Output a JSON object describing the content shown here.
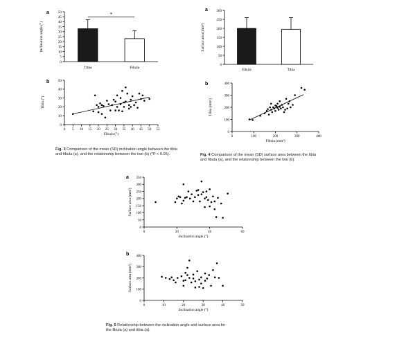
{
  "figures": {
    "fig3": {
      "label": "Fig. 3",
      "text": "Comparison of the mean (SD) inclination angle between the tibia and fibula (a), and the relationship between the two (b) (*P < 0.05)."
    },
    "fig4": {
      "label": "Fig. 4",
      "text": "Comparison of the mean (SD) surface area between the tibia and fibula (a), and the relationship between the two (b)."
    },
    "fig5": {
      "label": "Fig. 5",
      "text": "Relationship between the inclination angle and surface area for the fibula (a) and tibia (a)."
    }
  },
  "chart_data": [
    {
      "id": "fig3a",
      "panel": "a",
      "type": "bar",
      "categories": [
        "Tibia",
        "Fibula"
      ],
      "values": [
        33,
        23
      ],
      "errors": [
        9,
        8
      ],
      "bar_colors": [
        "#1a1a1a",
        "#ffffff"
      ],
      "significance": "*",
      "ylabel": "Inclination angle (°)",
      "ylim": [
        0,
        50
      ],
      "yticks": [
        0,
        5,
        10,
        15,
        20,
        25,
        30,
        35,
        40,
        45,
        50
      ]
    },
    {
      "id": "fig3b",
      "panel": "b",
      "type": "scatter",
      "xlabel": "Fibula (°)",
      "ylabel": "Tibia (°)",
      "xlim": [
        0,
        55
      ],
      "ylim": [
        0,
        50
      ],
      "xticks": [
        0,
        5,
        10,
        15,
        20,
        25,
        30,
        35,
        40,
        45,
        50,
        55
      ],
      "yticks": [
        0,
        10,
        20,
        30,
        40,
        50
      ],
      "trend": [
        [
          5,
          12
        ],
        [
          50,
          31
        ]
      ],
      "points": [
        [
          5,
          12
        ],
        [
          17,
          15
        ],
        [
          18,
          33
        ],
        [
          19,
          22
        ],
        [
          20,
          20
        ],
        [
          20,
          14
        ],
        [
          21,
          24
        ],
        [
          22,
          12
        ],
        [
          22,
          22
        ],
        [
          23,
          21
        ],
        [
          24,
          8
        ],
        [
          25,
          27
        ],
        [
          26,
          23
        ],
        [
          27,
          16
        ],
        [
          28,
          22
        ],
        [
          29,
          28
        ],
        [
          30,
          16
        ],
        [
          30,
          26
        ],
        [
          31,
          20
        ],
        [
          31,
          33
        ],
        [
          32,
          16
        ],
        [
          33,
          23
        ],
        [
          33,
          30
        ],
        [
          34,
          38
        ],
        [
          34,
          15
        ],
        [
          35,
          20
        ],
        [
          35,
          25
        ],
        [
          36,
          42
        ],
        [
          36,
          26
        ],
        [
          37,
          35
        ],
        [
          38,
          22
        ],
        [
          38,
          18
        ],
        [
          39,
          28
        ],
        [
          39,
          20
        ],
        [
          40,
          32
        ],
        [
          41,
          22
        ],
        [
          42,
          25
        ],
        [
          43,
          19
        ],
        [
          44,
          35
        ],
        [
          45,
          29
        ],
        [
          46,
          33
        ],
        [
          47,
          27
        ],
        [
          50,
          29
        ]
      ]
    },
    {
      "id": "fig4a",
      "panel": "a",
      "type": "bar",
      "categories": [
        "Fibula",
        "Tibia"
      ],
      "values": [
        200,
        195
      ],
      "errors": [
        60,
        65
      ],
      "bar_colors": [
        "#1a1a1a",
        "#ffffff"
      ],
      "ylabel": "Surface area (mm²)",
      "ylim": [
        0,
        300
      ],
      "yticks": [
        0,
        50,
        100,
        150,
        200,
        250,
        300
      ]
    },
    {
      "id": "fig4b",
      "panel": "b",
      "type": "scatter",
      "xlabel": "Fibula (mm²)",
      "ylabel": "Tibia (mm²)",
      "xlim": [
        0,
        400
      ],
      "ylim": [
        0,
        400
      ],
      "xticks": [
        0,
        100,
        200,
        300,
        400
      ],
      "yticks": [
        0,
        100,
        200,
        300,
        400
      ],
      "trend": [
        [
          80,
          95
        ],
        [
          330,
          305
        ]
      ],
      "points": [
        [
          80,
          100
        ],
        [
          95,
          95
        ],
        [
          130,
          130
        ],
        [
          150,
          150
        ],
        [
          160,
          170
        ],
        [
          165,
          185
        ],
        [
          170,
          140
        ],
        [
          175,
          200
        ],
        [
          180,
          180
        ],
        [
          180,
          230
        ],
        [
          185,
          160
        ],
        [
          190,
          200
        ],
        [
          195,
          190
        ],
        [
          200,
          215
        ],
        [
          200,
          170
        ],
        [
          205,
          210
        ],
        [
          210,
          195
        ],
        [
          210,
          230
        ],
        [
          215,
          180
        ],
        [
          220,
          205
        ],
        [
          220,
          250
        ],
        [
          225,
          190
        ],
        [
          230,
          220
        ],
        [
          235,
          200
        ],
        [
          240,
          160
        ],
        [
          245,
          180
        ],
        [
          250,
          270
        ],
        [
          255,
          190
        ],
        [
          260,
          230
        ],
        [
          265,
          250
        ],
        [
          270,
          200
        ],
        [
          280,
          220
        ],
        [
          290,
          300
        ],
        [
          320,
          360
        ],
        [
          335,
          345
        ]
      ]
    },
    {
      "id": "fig5a",
      "panel": "a",
      "type": "scatter",
      "xlabel": "Inclination angle (°)",
      "ylabel": "Surface area (mm²)",
      "xlim": [
        0,
        60
      ],
      "ylim": [
        0,
        350
      ],
      "xticks": [
        0,
        20,
        40,
        60
      ],
      "yticks": [
        0,
        50,
        100,
        150,
        200,
        250,
        300,
        350
      ],
      "points": [
        [
          7,
          175
        ],
        [
          19,
          175
        ],
        [
          20,
          200
        ],
        [
          21,
          215
        ],
        [
          22,
          210
        ],
        [
          23,
          165
        ],
        [
          24,
          300
        ],
        [
          24,
          185
        ],
        [
          25,
          205
        ],
        [
          26,
          210
        ],
        [
          27,
          250
        ],
        [
          28,
          200
        ],
        [
          29,
          230
        ],
        [
          30,
          180
        ],
        [
          31,
          210
        ],
        [
          32,
          255
        ],
        [
          33,
          260
        ],
        [
          33,
          225
        ],
        [
          34,
          180
        ],
        [
          35,
          230
        ],
        [
          35,
          320
        ],
        [
          36,
          245
        ],
        [
          37,
          140
        ],
        [
          37,
          200
        ],
        [
          38,
          210
        ],
        [
          38,
          250
        ],
        [
          39,
          190
        ],
        [
          40,
          145
        ],
        [
          40,
          265
        ],
        [
          41,
          175
        ],
        [
          42,
          215
        ],
        [
          43,
          125
        ],
        [
          43,
          180
        ],
        [
          44,
          70
        ],
        [
          45,
          205
        ],
        [
          47,
          165
        ],
        [
          48,
          65
        ],
        [
          51,
          235
        ]
      ]
    },
    {
      "id": "fig5b",
      "panel": "b",
      "type": "scatter",
      "xlabel": "Inclination angle (°)",
      "ylabel": "Surface area (mm²)",
      "xlim": [
        0,
        50
      ],
      "ylim": [
        0,
        400
      ],
      "xticks": [
        0,
        10,
        20,
        30,
        40,
        50
      ],
      "yticks": [
        0,
        100,
        200,
        300,
        400
      ],
      "points": [
        [
          9,
          210
        ],
        [
          11,
          200
        ],
        [
          13,
          190
        ],
        [
          14,
          205
        ],
        [
          15,
          180
        ],
        [
          16,
          160
        ],
        [
          17,
          200
        ],
        [
          19,
          215
        ],
        [
          20,
          130
        ],
        [
          20,
          175
        ],
        [
          21,
          245
        ],
        [
          21,
          180
        ],
        [
          22,
          225
        ],
        [
          22,
          290
        ],
        [
          23,
          355
        ],
        [
          23,
          200
        ],
        [
          24,
          160
        ],
        [
          25,
          230
        ],
        [
          25,
          195
        ],
        [
          26,
          170
        ],
        [
          26,
          115
        ],
        [
          27,
          260
        ],
        [
          28,
          185
        ],
        [
          28,
          120
        ],
        [
          29,
          150
        ],
        [
          29,
          205
        ],
        [
          30,
          110
        ],
        [
          31,
          175
        ],
        [
          31,
          240
        ],
        [
          32,
          195
        ],
        [
          33,
          225
        ],
        [
          34,
          130
        ],
        [
          35,
          270
        ],
        [
          36,
          205
        ],
        [
          37,
          330
        ],
        [
          38,
          200
        ],
        [
          40,
          130
        ]
      ]
    }
  ]
}
